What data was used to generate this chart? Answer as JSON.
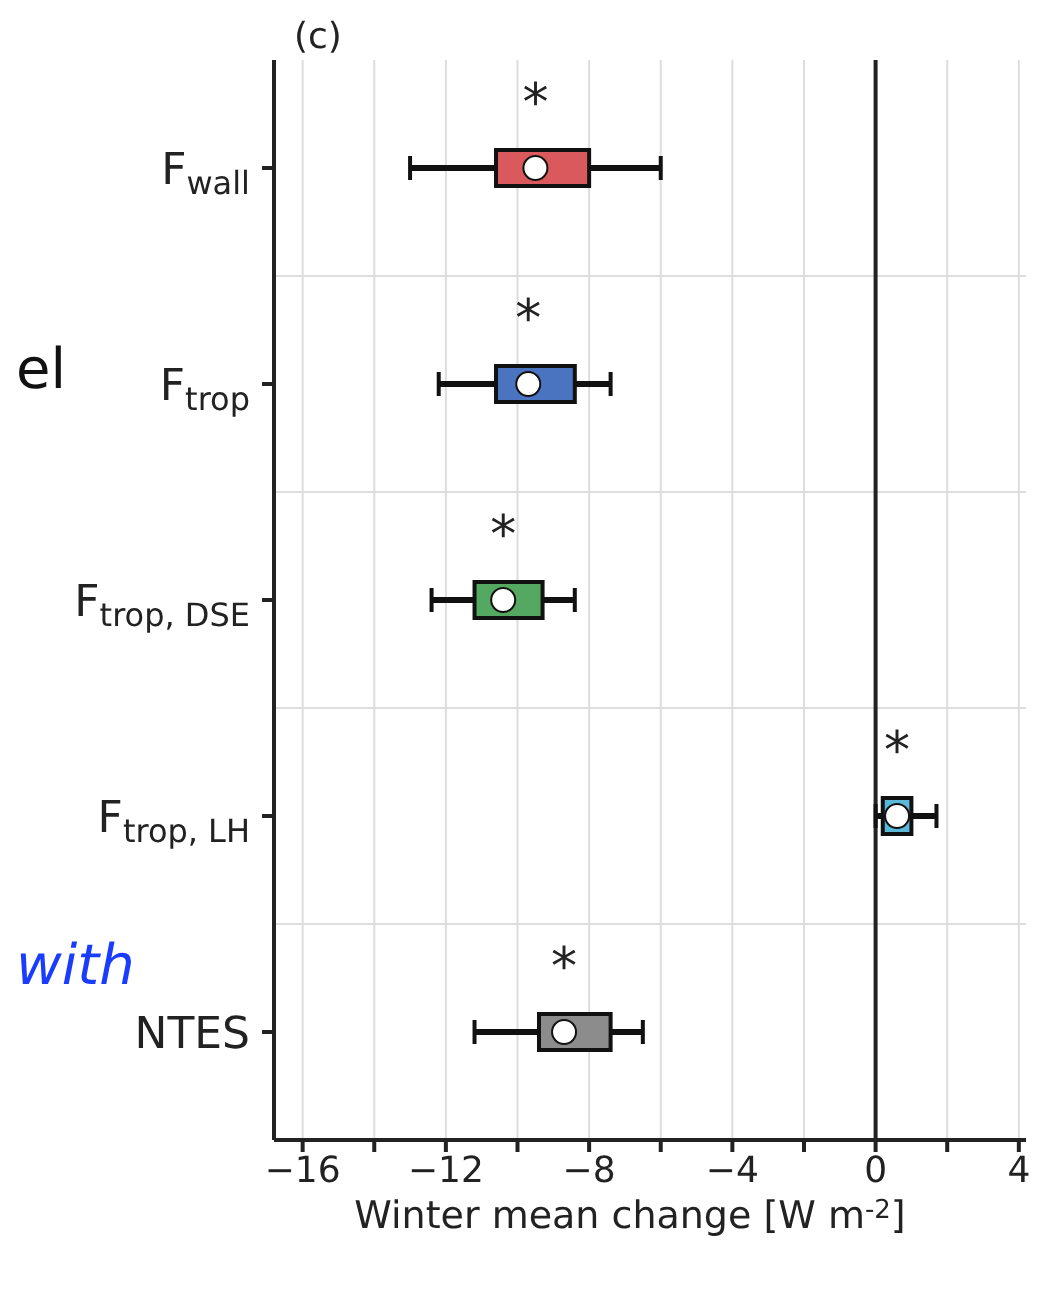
{
  "chart_data": {
    "type": "box",
    "orientation": "horizontal",
    "title": "(c)",
    "xlabel": "Winter mean change [W m$^{-2}$]",
    "categories": [
      "F$_{wall}$",
      "F$_{trop}$",
      "F$_{trop, DSE}$",
      "F$_{trop, LH}$",
      "NTES"
    ],
    "colors": [
      "#d9595c",
      "#4a73c0",
      "#55a862",
      "#5bb8d8",
      "#8c8c8c"
    ],
    "boxes": [
      {
        "low": -13.0,
        "q1": -10.6,
        "median": -9.5,
        "q3": -8.0,
        "high": -6.0
      },
      {
        "low": -12.2,
        "q1": -10.6,
        "median": -9.7,
        "q3": -8.4,
        "high": -7.4
      },
      {
        "low": -12.4,
        "q1": -11.2,
        "median": -10.4,
        "q3": -9.3,
        "high": -8.4
      },
      {
        "low": 0.0,
        "q1": 0.2,
        "median": 0.6,
        "q3": 1.0,
        "high": 1.7
      },
      {
        "low": -11.2,
        "q1": -9.4,
        "median": -8.7,
        "q3": -7.4,
        "high": -6.5
      }
    ],
    "value_labels": [
      "*",
      "*",
      "*",
      "*",
      "*"
    ],
    "xlim": [
      -16.8,
      4.2
    ],
    "xticks": [
      -16,
      {
        "value": -14,
        "label": null
      },
      -12,
      {
        "value": -10,
        "label": null
      },
      -8,
      {
        "value": -6,
        "label": null
      },
      -4,
      {
        "value": -2,
        "label": null
      },
      0,
      {
        "value": 2,
        "label": null
      },
      4
    ],
    "grid": true,
    "ref_lines": [
      {
        "axis": "x",
        "value": 0,
        "color": "#222222"
      }
    ],
    "annotations": [
      "el",
      "with"
    ]
  }
}
